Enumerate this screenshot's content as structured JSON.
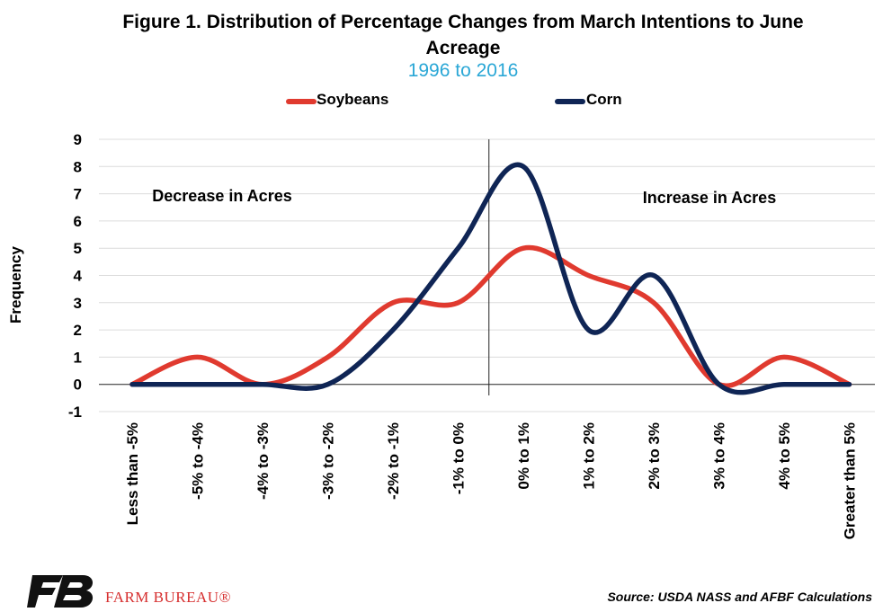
{
  "chart_data": {
    "type": "line",
    "title": "Figure 1. Distribution of Percentage Changes from March Intentions to June Acreage",
    "subtitle": "1996 to 2016",
    "xlabel": "",
    "ylabel": "Frequency",
    "ylim": [
      -1,
      9
    ],
    "yticks": [
      "-1",
      "0",
      "1",
      "2",
      "3",
      "4",
      "5",
      "6",
      "7",
      "8",
      "9"
    ],
    "categories": [
      "Less than -5%",
      "-5% to -4%",
      "-4% to -3%",
      "-3% to -2%",
      "-2% to -1%",
      "-1% to 0%",
      "0% to 1%",
      "1% to 2%",
      "2% to 3%",
      "3% to 4%",
      "4% to 5%",
      "Greater than 5%"
    ],
    "series": [
      {
        "name": "Soybeans",
        "color": "#e03a2f",
        "values": [
          0,
          1,
          0,
          1,
          3,
          3,
          5,
          4,
          3,
          0,
          1,
          0
        ]
      },
      {
        "name": "Corn",
        "color": "#0f2555",
        "values": [
          0,
          0,
          0,
          0,
          2,
          5,
          8,
          2,
          4,
          0,
          0,
          0
        ]
      }
    ],
    "annotations": [
      "Decrease in Acres",
      "Increase in Acres"
    ],
    "legend": "top",
    "grid": true,
    "divider_between": [
      "-1% to 0%",
      "0% to 1%"
    ]
  },
  "logo_text": "FARM BUREAU®",
  "source": "Source: USDA NASS and AFBF Calculations"
}
